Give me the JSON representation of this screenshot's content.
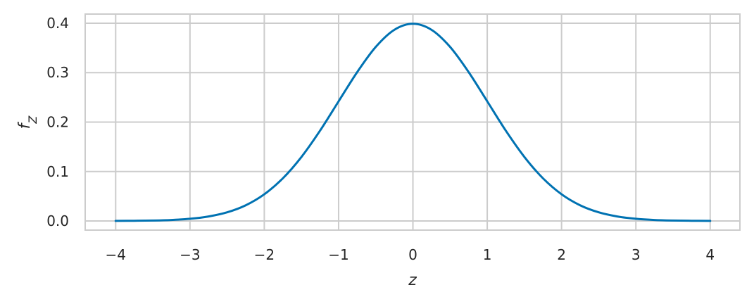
{
  "chart_data": {
    "type": "line",
    "title": "",
    "xlabel": "z",
    "ylabel": "f_Z",
    "xlim": [
      -4.41,
      4.4
    ],
    "ylim": [
      -0.0185,
      0.4185
    ],
    "xticks": [
      -4,
      -3,
      -2,
      -1,
      0,
      1,
      2,
      3,
      4
    ],
    "xtick_labels": [
      "−4",
      "−3",
      "−2",
      "−1",
      "0",
      "1",
      "2",
      "3",
      "4"
    ],
    "yticks": [
      0.0,
      0.1,
      0.2,
      0.3,
      0.4
    ],
    "ytick_labels": [
      "0.0",
      "0.1",
      "0.2",
      "0.3",
      "0.4"
    ],
    "grid": true,
    "series": [
      {
        "color": "#0072b2",
        "x": [
          -4,
          -3.75,
          -3.5,
          -3.25,
          -3,
          -2.75,
          -2.5,
          -2.25,
          -2,
          -1.75,
          -1.5,
          -1.25,
          -1,
          -0.75,
          -0.5,
          -0.25,
          0,
          0.25,
          0.5,
          0.75,
          1,
          1.25,
          1.5,
          1.75,
          2,
          2.25,
          2.5,
          2.75,
          3,
          3.25,
          3.5,
          3.75,
          4
        ],
        "y": [
          0.0001,
          0.0004,
          0.0009,
          0.002,
          0.0044,
          0.0091,
          0.0175,
          0.0317,
          0.054,
          0.0863,
          0.1295,
          0.1826,
          0.242,
          0.3011,
          0.3521,
          0.3867,
          0.3989,
          0.3867,
          0.3521,
          0.3011,
          0.242,
          0.1826,
          0.1295,
          0.0863,
          0.054,
          0.0317,
          0.0175,
          0.0091,
          0.0044,
          0.002,
          0.0009,
          0.0004,
          0.0001
        ]
      }
    ]
  }
}
